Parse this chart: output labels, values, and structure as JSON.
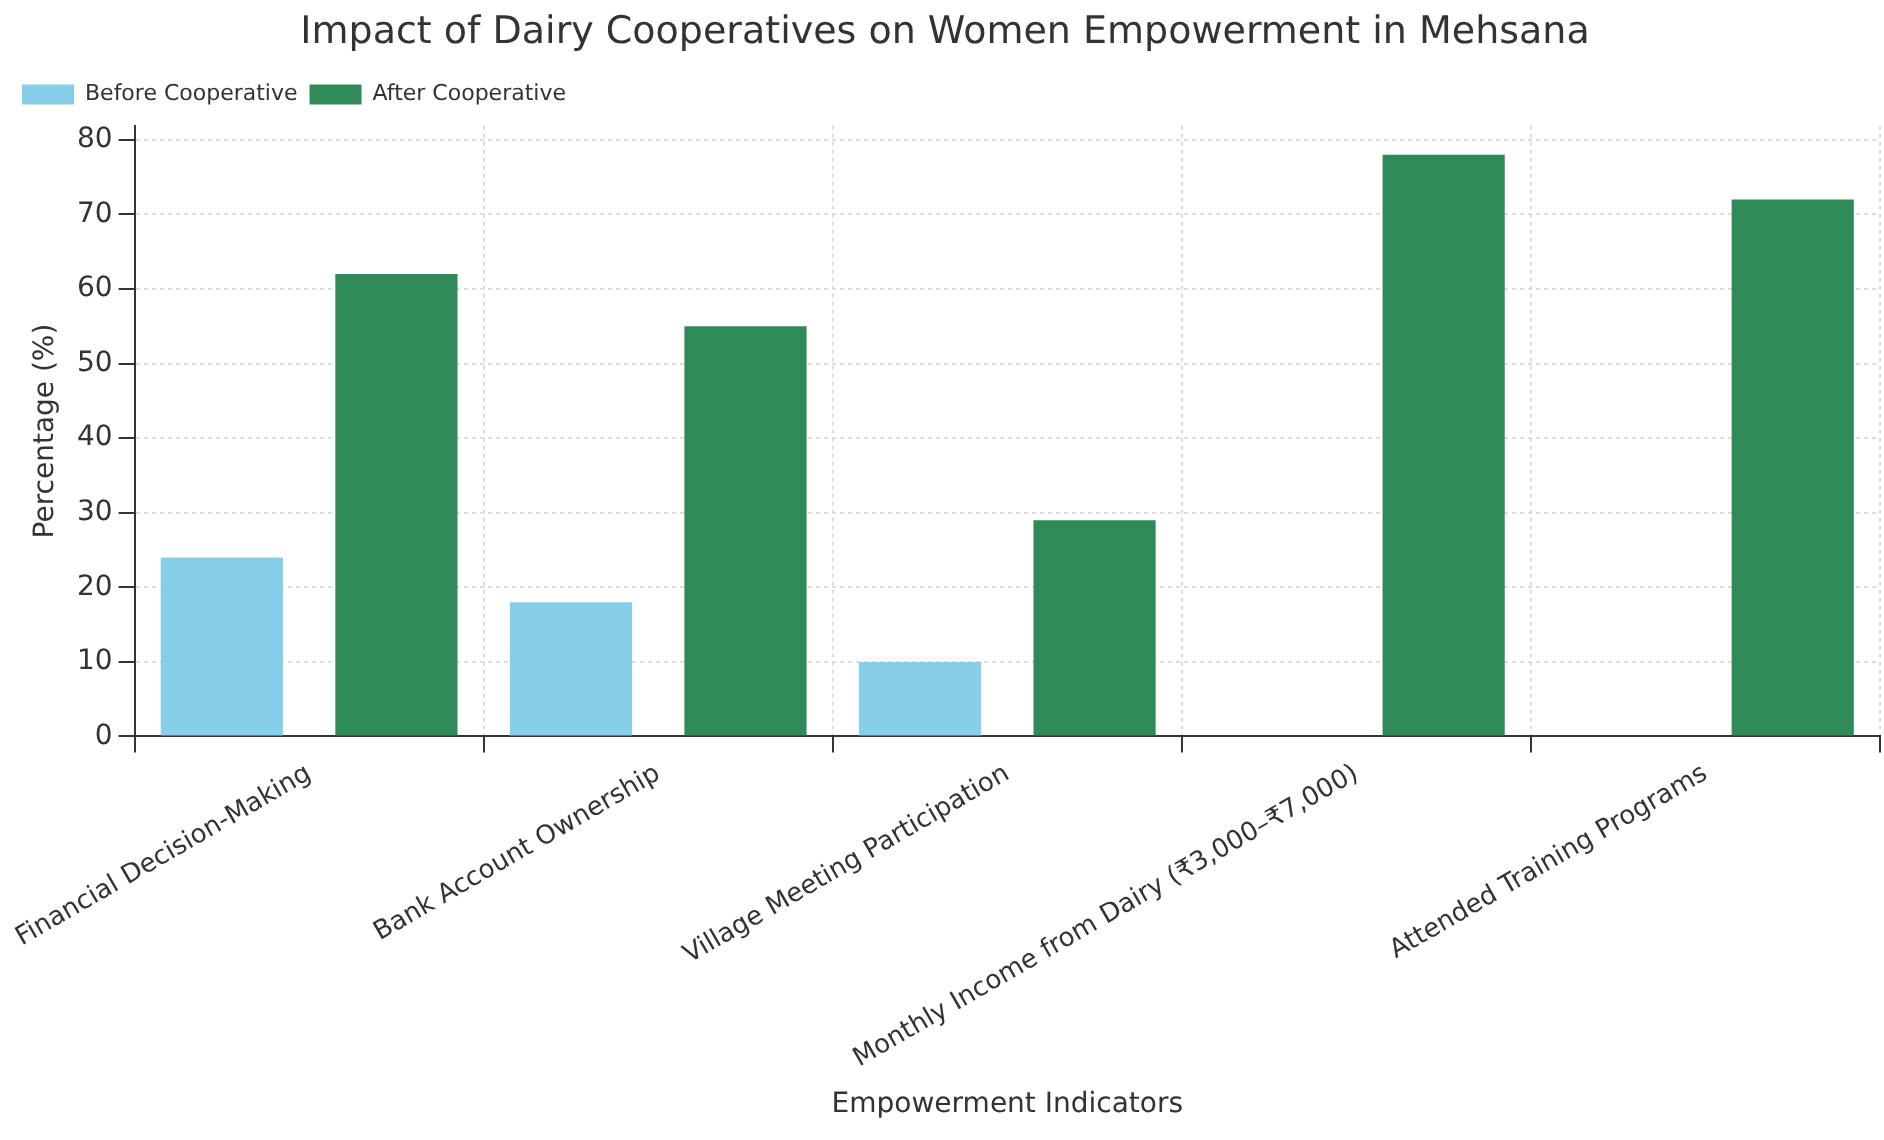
{
  "chart_data": {
    "type": "bar",
    "title": "Impact of Dairy Cooperatives on Women Empowerment in Mehsana",
    "xlabel": "Empowerment Indicators",
    "ylabel": "Percentage (%)",
    "categories": [
      "Financial Decision-Making",
      "Bank Account Ownership",
      "Village Meeting Participation",
      "Monthly Income from Dairy (₹3,000–₹7,000)",
      "Attended Training Programs"
    ],
    "series": [
      {
        "name": "Before Cooperative",
        "color": "#87ceeb",
        "values": [
          24,
          18,
          10,
          0,
          0
        ]
      },
      {
        "name": "After Cooperative",
        "color": "#2e8b57",
        "values": [
          62,
          55,
          29,
          78,
          72
        ]
      }
    ],
    "ylim": [
      0,
      81.9
    ],
    "yticks": [
      0,
      10,
      20,
      30,
      40,
      50,
      60,
      70,
      80
    ],
    "grid": true,
    "legend": "top left"
  }
}
